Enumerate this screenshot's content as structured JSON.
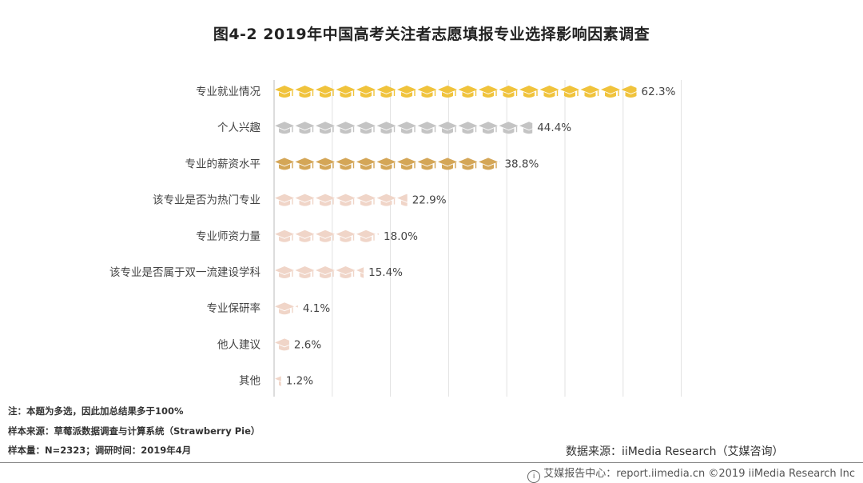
{
  "title": "图4-2 2019年中国高考关注者志愿填报专业选择影响因素调查",
  "chart_data": {
    "type": "bar",
    "orientation": "horizontal",
    "categories": [
      "专业就业情况",
      "个人兴趣",
      "专业的薪资水平",
      "该专业是否为热门专业",
      "专业师资力量",
      "该专业是否属于双一流建设学科",
      "专业保研率",
      "他人建议",
      "其他"
    ],
    "values": [
      62.3,
      44.4,
      38.8,
      22.9,
      18.0,
      15.4,
      4.1,
      2.6,
      1.2
    ],
    "value_labels": [
      "62.3%",
      "44.4%",
      "38.8%",
      "22.9%",
      "18.0%",
      "15.4%",
      "4.1%",
      "2.6%",
      "1.2%"
    ],
    "colors": [
      "#f0c33c",
      "#c4c4c4",
      "#d4a657",
      "#f0d5c8",
      "#f0d5c8",
      "#f0d5c8",
      "#f0d5c8",
      "#f0d5c8",
      "#f0d5c8"
    ],
    "mark_shape": "graduation-cap-icon",
    "xlim": [
      0,
      70
    ],
    "grid": true
  },
  "notes": {
    "note1": "注：本题为多选，因此加总结果多于100%",
    "note2": "样本来源：草莓派数据调查与计算系统（Strawberry Pie）",
    "note3": "样本量：N=2323；调研时间：2019年4月"
  },
  "source": "数据来源：iiMedia Research（艾媒咨询）",
  "footer": "艾媒报告中心：report.iimedia.cn  ©2019  iiMedia Research  Inc"
}
